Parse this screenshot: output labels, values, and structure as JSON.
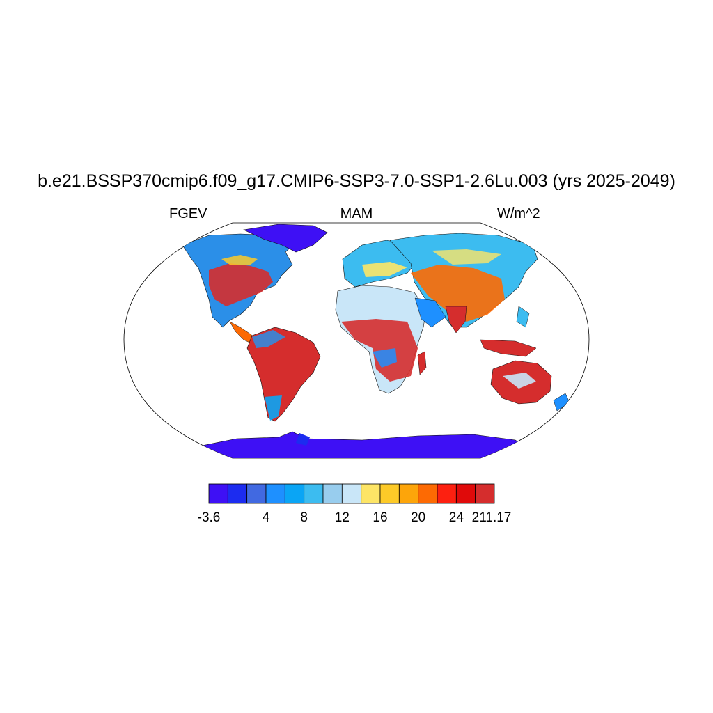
{
  "title": "b.e21.BSSP370cmip6.f09_g17.CMIP6-SSP3-7.0-SSP1-2.6Lu.003 (yrs 2025-2049)",
  "variable": "FGEV",
  "season": "MAM",
  "units": "W/m^2",
  "colorbar": {
    "colors": [
      "#3e10f5",
      "#1c2cf0",
      "#4169e1",
      "#1e90ff",
      "#0aa5f5",
      "#3cbcf0",
      "#98cdee",
      "#c9e6f8",
      "#fde566",
      "#fdca28",
      "#fda50a",
      "#fd6a03",
      "#fd2010",
      "#e00a0a",
      "#d52d2d"
    ],
    "labels": [
      "-3.6",
      "4",
      "8",
      "12",
      "16",
      "20",
      "24",
      "211.17"
    ],
    "min": -3.6,
    "max": 211.17
  }
}
